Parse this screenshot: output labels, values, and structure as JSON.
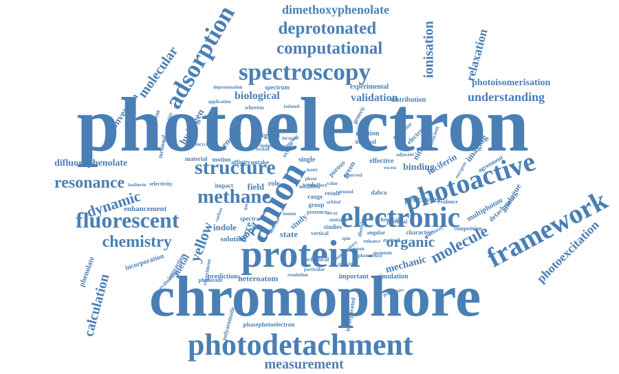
{
  "accent_color": "#4a7fb5",
  "words": [
    {
      "text": "photoelectron"
    },
    {
      "text": "chromophore"
    },
    {
      "text": "photodetachment"
    },
    {
      "text": "protein"
    },
    {
      "text": "anion"
    },
    {
      "text": "electronic"
    },
    {
      "text": "photoactive"
    },
    {
      "text": "spectroscopy"
    },
    {
      "text": "structure"
    },
    {
      "text": "methane"
    },
    {
      "text": "fluorescent"
    },
    {
      "text": "computational"
    },
    {
      "text": "deprotonated"
    },
    {
      "text": "framework"
    },
    {
      "text": "adsorption"
    },
    {
      "text": "resonance"
    },
    {
      "text": "chemistry"
    },
    {
      "text": "measurement"
    },
    {
      "text": "photoexcitation"
    },
    {
      "text": "ionisation"
    },
    {
      "text": "dimethoxyphenolate"
    },
    {
      "text": "molecule"
    },
    {
      "text": "organic"
    },
    {
      "text": "dynamic"
    },
    {
      "text": "calculation"
    },
    {
      "text": "yellow"
    },
    {
      "text": "understanding"
    },
    {
      "text": "molecular"
    },
    {
      "text": "difluorophenolate"
    },
    {
      "text": "validation"
    },
    {
      "text": "biological"
    },
    {
      "text": "relaxation"
    },
    {
      "text": "photoisomerisation"
    },
    {
      "text": "hydrogen"
    },
    {
      "text": "conversion"
    },
    {
      "text": "energy"
    },
    {
      "text": "mechanic"
    },
    {
      "text": "imaging"
    },
    {
      "text": "luciferin"
    },
    {
      "text": "multiphoton"
    },
    {
      "text": "analogue"
    },
    {
      "text": "detachment"
    },
    {
      "text": "binding"
    },
    {
      "text": "processes"
    },
    {
      "text": "enhancement"
    },
    {
      "text": "metal"
    },
    {
      "text": "indole"
    },
    {
      "text": "bond"
    },
    {
      "text": "state"
    },
    {
      "text": "study"
    },
    {
      "text": "force"
    },
    {
      "text": "solution"
    },
    {
      "text": "heteroatom"
    },
    {
      "text": "prediction"
    },
    {
      "text": "important"
    },
    {
      "text": "simulation"
    },
    {
      "text": "phenolate"
    },
    {
      "text": "incorporation"
    },
    {
      "text": "phasephotoelectron"
    },
    {
      "text": "polyaromatic"
    },
    {
      "text": "incorporated"
    },
    {
      "text": "interaction"
    },
    {
      "text": "evaluation"
    },
    {
      "text": "selectivity"
    },
    {
      "text": "experimental"
    },
    {
      "text": "distribution"
    },
    {
      "text": "rotation"
    },
    {
      "text": "internal"
    },
    {
      "text": "ligand"
    },
    {
      "text": "single"
    },
    {
      "text": "field"
    },
    {
      "text": "role"
    },
    {
      "text": "impact"
    },
    {
      "text": "spectra"
    },
    {
      "text": "green"
    },
    {
      "text": "effective"
    },
    {
      "text": "nitrogen"
    },
    {
      "text": "electron"
    },
    {
      "text": "response"
    },
    {
      "text": "generic"
    },
    {
      "text": "torsional"
    },
    {
      "text": "substituent"
    },
    {
      "text": "functionality"
    },
    {
      "text": "material"
    },
    {
      "text": "motion"
    },
    {
      "text": "affinity"
    },
    {
      "text": "uptake"
    },
    {
      "text": "agreement"
    },
    {
      "text": "evidence"
    },
    {
      "text": "range"
    },
    {
      "text": "result"
    },
    {
      "text": "porous"
    },
    {
      "text": "dabco"
    },
    {
      "text": "character"
    },
    {
      "text": "potential"
    },
    {
      "text": "excited"
    },
    {
      "text": "studies"
    },
    {
      "text": "dioxide"
    },
    {
      "text": "angular"
    },
    {
      "text": "competition"
    },
    {
      "text": "pathway"
    },
    {
      "text": "spectrum"
    },
    {
      "text": "deprotonation"
    },
    {
      "text": "whereas"
    },
    {
      "text": "isolated"
    },
    {
      "text": "photocycle"
    },
    {
      "text": "efficient"
    },
    {
      "text": "biochemical"
    },
    {
      "text": "isotherm"
    },
    {
      "text": "experiment"
    },
    {
      "text": "phenoxide"
    },
    {
      "text": "sites"
    },
    {
      "text": "gas"
    },
    {
      "text": "weak"
    },
    {
      "text": "group"
    },
    {
      "text": "presence"
    },
    {
      "text": "vertical"
    },
    {
      "text": "chemical"
    },
    {
      "text": "application"
    },
    {
      "text": "intrinsic"
    },
    {
      "text": "disorder"
    },
    {
      "text": "increase"
    },
    {
      "text": "carbon"
    },
    {
      "text": "insight"
    },
    {
      "text": "oxygen"
    },
    {
      "text": "locked"
    },
    {
      "text": "many"
    },
    {
      "text": "effect"
    },
    {
      "text": "value"
    },
    {
      "text": "ground"
    },
    {
      "text": "excess"
    },
    {
      "text": "adjacent"
    },
    {
      "text": "energetic"
    },
    {
      "text": "phase"
    },
    {
      "text": "particular"
    },
    {
      "text": "resolution"
    },
    {
      "text": "stacking"
    },
    {
      "text": "properties"
    },
    {
      "text": "enhance"
    },
    {
      "text": "upon"
    },
    {
      "text": "surface"
    },
    {
      "text": "photon"
    },
    {
      "text": "emission"
    },
    {
      "text": "decay"
    },
    {
      "text": "isomer"
    },
    {
      "text": "photochemistry"
    },
    {
      "text": "quantum"
    },
    {
      "text": "spin"
    },
    {
      "text": "orbital"
    },
    {
      "text": "observed"
    },
    {
      "text": "modified"
    }
  ]
}
